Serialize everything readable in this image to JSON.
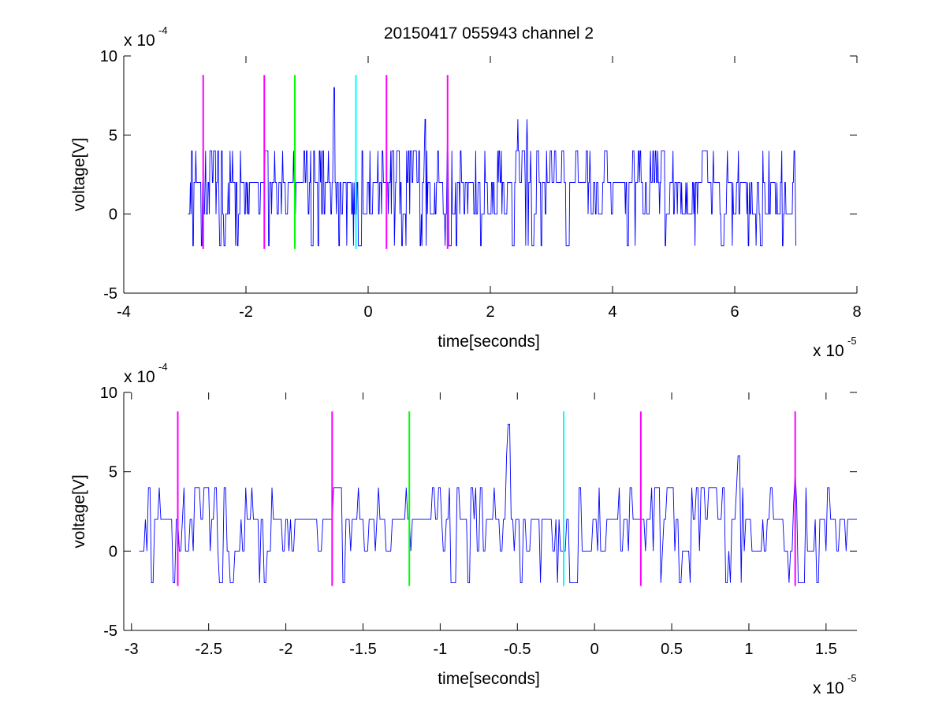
{
  "figure": {
    "title": "20150417 055943 channel 2"
  },
  "chart_data": [
    {
      "type": "line",
      "xlabel": "time[seconds]",
      "ylabel": "voltage[V]",
      "xlim": [
        -4e-05,
        8e-05
      ],
      "ylim": [
        -0.0005,
        0.001
      ],
      "x_ticks": [
        -4e-05,
        -2e-05,
        0,
        2e-05,
        4e-05,
        6e-05,
        8e-05
      ],
      "x_tick_labels": [
        "-4",
        "-2",
        "0",
        "2",
        "4",
        "6",
        "8"
      ],
      "y_ticks": [
        -0.0005,
        0,
        0.0005,
        0.001
      ],
      "y_tick_labels": [
        "-5",
        "0",
        "5",
        "10"
      ],
      "x_multiplier": {
        "base": "x 10",
        "exponent": "-5"
      },
      "y_multiplier": {
        "base": "x 10",
        "exponent": "-4"
      },
      "grid": false,
      "series_color": "#0000ff",
      "signal_x_range": [
        -2.95e-05,
        7e-05
      ],
      "signal_levels": [
        -0.0002,
        0,
        0.0002,
        0.0004,
        0.0006,
        0.0008
      ],
      "signal_peaks": [
        {
          "x": -5.6e-06,
          "y": 0.0008
        },
        {
          "x": 9.3e-06,
          "y": 0.0006
        },
        {
          "x": 2.45e-05,
          "y": 0.0006
        },
        {
          "x": 2.6e-05,
          "y": 0.0006
        },
        {
          "x": 1.3e-05,
          "y": 0.0005
        }
      ],
      "markers": [
        {
          "x": -2.7e-05,
          "color": "#ff00ff"
        },
        {
          "x": -1.7e-05,
          "color": "#ff00ff"
        },
        {
          "x": -1.2e-05,
          "color": "#00ff00"
        },
        {
          "x": -2e-06,
          "color": "#00ffff"
        },
        {
          "x": 3e-06,
          "color": "#ff00ff"
        },
        {
          "x": 1.3e-05,
          "color": "#ff00ff"
        }
      ],
      "marker_y_range": [
        -0.00022,
        0.00088
      ]
    },
    {
      "type": "line",
      "xlabel": "time[seconds]",
      "ylabel": "voltage[V]",
      "xlim": [
        -3.05e-05,
        1.7e-05
      ],
      "ylim": [
        -0.0005,
        0.001
      ],
      "x_ticks": [
        -3e-05,
        -2.5e-05,
        -2e-05,
        -1.5e-05,
        -1e-05,
        -5e-06,
        0,
        5e-06,
        1e-05,
        1.5e-05
      ],
      "x_tick_labels": [
        "-3",
        "-2.5",
        "-2",
        "-1.5",
        "-1",
        "-0.5",
        "0",
        "0.5",
        "1",
        "1.5"
      ],
      "y_ticks": [
        -0.0005,
        0,
        0.0005,
        0.001
      ],
      "y_tick_labels": [
        "-5",
        "0",
        "5",
        "10"
      ],
      "x_multiplier": {
        "base": "x 10",
        "exponent": "-5"
      },
      "y_multiplier": {
        "base": "x 10",
        "exponent": "-4"
      },
      "grid": false,
      "series_color": "#0000ff",
      "signal_x_range": [
        -2.95e-05,
        1.7e-05
      ],
      "signal_levels": [
        -0.0002,
        0,
        0.0002,
        0.0004,
        0.0006,
        0.0008
      ],
      "signal_peaks": [
        {
          "x": -5.6e-06,
          "y": 0.0008
        },
        {
          "x": 9.3e-06,
          "y": 0.0006
        },
        {
          "x": 1.3e-05,
          "y": 0.0005
        }
      ],
      "markers": [
        {
          "x": -2.7e-05,
          "color": "#ff00ff"
        },
        {
          "x": -1.7e-05,
          "color": "#ff00ff"
        },
        {
          "x": -1.2e-05,
          "color": "#00ff00"
        },
        {
          "x": -2e-06,
          "color": "#00ffff"
        },
        {
          "x": 3e-06,
          "color": "#ff00ff"
        },
        {
          "x": 1.3e-05,
          "color": "#ff00ff"
        }
      ],
      "marker_y_range": [
        -0.00022,
        0.00088
      ]
    }
  ]
}
